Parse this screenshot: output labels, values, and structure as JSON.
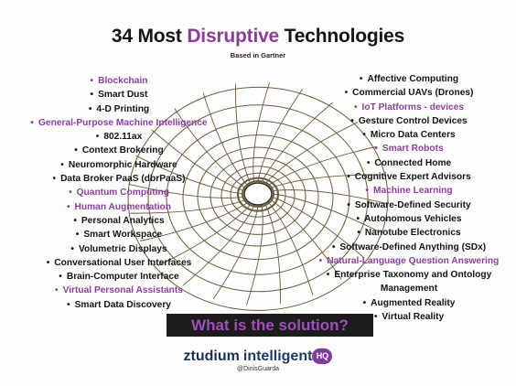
{
  "title": {
    "part1": "34 Most ",
    "highlight": "Disruptive",
    "part2": " Technologies"
  },
  "subtitle": "Based in Gartner",
  "left_items": [
    {
      "label": "Blockchain",
      "purple": true,
      "bullet": true
    },
    {
      "label": "Smart Dust",
      "purple": false,
      "bullet": true
    },
    {
      "label": "4-D Printing",
      "purple": false,
      "bullet": true
    },
    {
      "label": "General-Purpose Machine Intelligence",
      "purple": true,
      "bullet": true
    },
    {
      "label": "802.11ax",
      "purple": false,
      "bullet": true
    },
    {
      "label": "Context Brokering",
      "purple": false,
      "bullet": true
    },
    {
      "label": "Neuromorphic Hardware",
      "purple": false,
      "bullet": true
    },
    {
      "label": "Data Broker PaaS (dbrPaaS)",
      "purple": false,
      "bullet": true
    },
    {
      "label": "Quantum Computing",
      "purple": true,
      "bullet": true
    },
    {
      "label": "Human Augmentation",
      "purple": true,
      "bullet": true
    },
    {
      "label": "Personal Analytics",
      "purple": false,
      "bullet": true
    },
    {
      "label": "Smart Workspace",
      "purple": false,
      "bullet": true
    },
    {
      "label": "Volumetric Displays",
      "purple": false,
      "bullet": true
    },
    {
      "label": "Conversational User Interfaces",
      "purple": false,
      "bullet": true
    },
    {
      "label": "Brain-Computer Interface",
      "purple": false,
      "bullet": true
    },
    {
      "label": "Virtual Personal Assistants",
      "purple": true,
      "bullet": true
    },
    {
      "label": "Smart Data Discovery",
      "purple": false,
      "bullet": true
    }
  ],
  "right_items": [
    {
      "label": "Affective Computing",
      "purple": false,
      "bullet": true
    },
    {
      "label": "Commercial UAVs (Drones)",
      "purple": false,
      "bullet": true
    },
    {
      "label": "IoT Platforms - devices",
      "purple": true,
      "bullet": true
    },
    {
      "label": "Gesture Control Devices",
      "purple": false,
      "bullet": true
    },
    {
      "label": "Micro Data Centers",
      "purple": false,
      "bullet": true
    },
    {
      "label": "Smart Robots",
      "purple": true,
      "bullet": true
    },
    {
      "label": "Connected Home",
      "purple": false,
      "bullet": true
    },
    {
      "label": "Cognitive Expert Advisors",
      "purple": false,
      "bullet": true
    },
    {
      "label": "Machine Learning",
      "purple": true,
      "bullet": true
    },
    {
      "label": "Software-Defined Security",
      "purple": false,
      "bullet": true
    },
    {
      "label": "Autonomous Vehicles",
      "purple": false,
      "bullet": true
    },
    {
      "label": "Nanotube Electronics",
      "purple": false,
      "bullet": true
    },
    {
      "label": "Software-Defined Anything (SDx)",
      "purple": false,
      "bullet": true
    },
    {
      "label": "Natural-Language Question Answering",
      "purple": true,
      "bullet": true
    },
    {
      "label": "Enterprise Taxonomy and Ontology",
      "purple": false,
      "bullet": true
    },
    {
      "label": "Management",
      "purple": false,
      "bullet": false
    },
    {
      "label": "Augmented Reality",
      "purple": false,
      "bullet": true
    },
    {
      "label": "Virtual Reality",
      "purple": false,
      "bullet": true
    }
  ],
  "bullet_glyph": "•",
  "solution_text": "What is the solution?",
  "logo": {
    "brand": "ztudium",
    "product": "intelligent",
    "badge": "HQ"
  },
  "handle": "@DinisGuarda",
  "colors": {
    "accent_purple": "#8d3ea0",
    "text_dark": "#141414",
    "banner_bg": "#1c1c1c"
  },
  "graphic": "wormhole-grid"
}
